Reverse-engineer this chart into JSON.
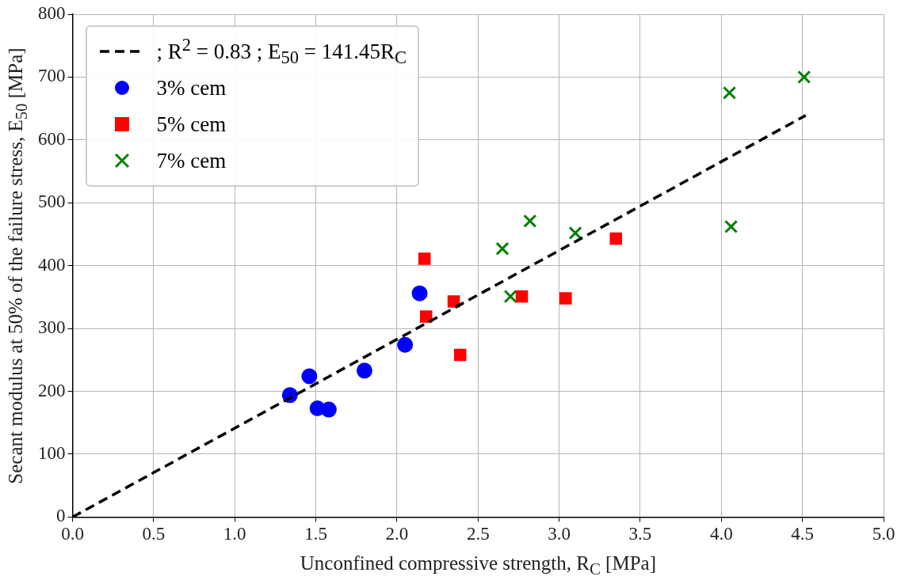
{
  "chart_data": {
    "type": "scatter",
    "xlabel": "Unconfined compressive strength, R$_{C}$ [MPa]",
    "ylabel": "Secant modulus at 50% of the failure stress, E$_{50}$ [MPa]",
    "xlim": [
      0,
      5
    ],
    "ylim": [
      0,
      800
    ],
    "xticks": [
      {
        "value": 0,
        "label": "0.0"
      },
      0.5,
      {
        "value": 1,
        "label": "1.0"
      },
      1.5,
      {
        "value": 2,
        "label": "2.0"
      },
      2.5,
      {
        "value": 3,
        "label": "3.0"
      },
      3.5,
      {
        "value": 4,
        "label": "4.0"
      },
      4.5,
      {
        "value": 5,
        "label": "5.0"
      }
    ],
    "yticks": [
      0,
      100,
      200,
      300,
      400,
      500,
      600,
      700,
      800
    ],
    "grid": true,
    "legend": "top left",
    "series": [
      {
        "name": "; R$^{2}$ = 0.83 ; E$_{50}$ = 141.45R$_{C}$",
        "type": "line",
        "color": "#000000",
        "marker": "none",
        "line_style": "dashed",
        "x": [
          0,
          4.52
        ],
        "values": [
          0,
          639
        ]
      },
      {
        "name": "3% cem",
        "color": "#0000ff",
        "marker": "circle",
        "x": [
          1.34,
          1.46,
          1.51,
          1.58,
          1.8,
          2.05,
          2.14
        ],
        "values": [
          194,
          224,
          173,
          171,
          233,
          274,
          356
        ]
      },
      {
        "name": "5% cem",
        "color": "#ff0000",
        "marker": "square",
        "x": [
          2.17,
          2.18,
          2.35,
          2.39,
          2.77,
          3.04,
          3.35
        ],
        "values": [
          411,
          319,
          343,
          258,
          351,
          348,
          443
        ]
      },
      {
        "name": "7% cem",
        "color": "#008000",
        "marker": "cross",
        "x": [
          2.65,
          2.7,
          2.82,
          3.1,
          4.05,
          4.06,
          4.51
        ],
        "values": [
          427,
          351,
          471,
          452,
          675,
          462,
          700
        ]
      }
    ]
  }
}
